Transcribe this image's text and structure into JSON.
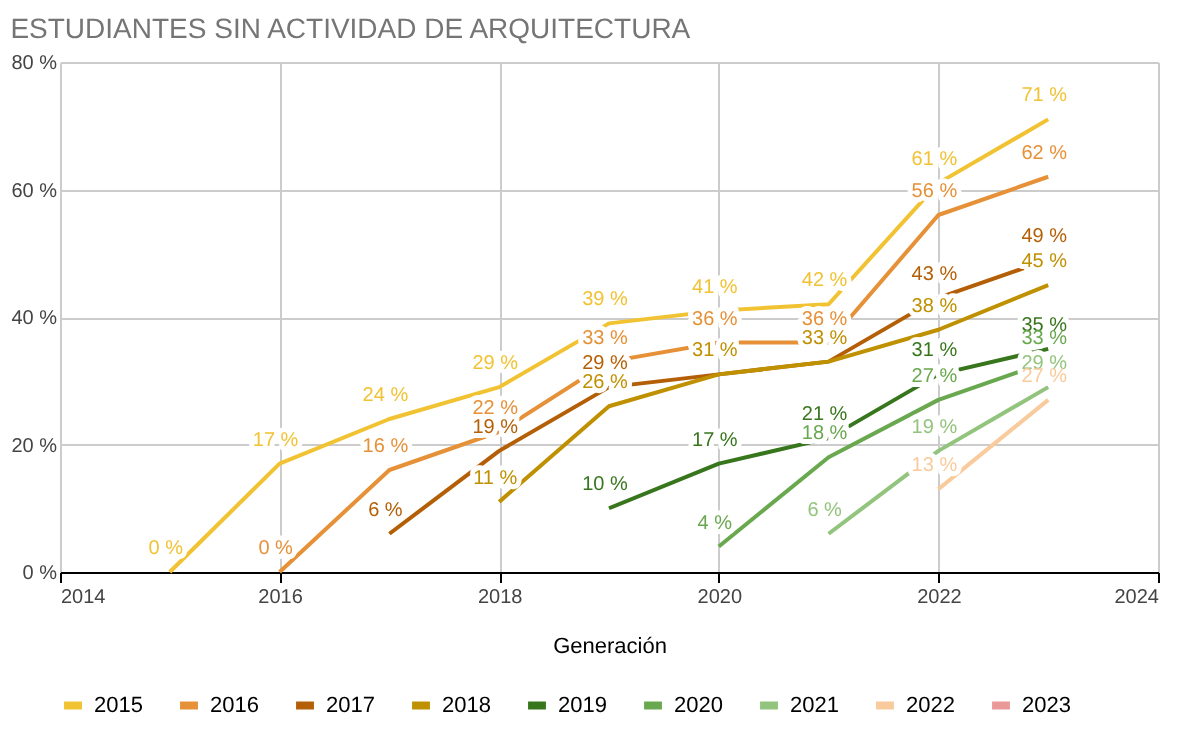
{
  "chart_data": {
    "type": "line",
    "title": "ESTUDIANTES SIN ACTIVIDAD DE ARQUITECTURA",
    "xlabel": "Generación",
    "x": [
      2015,
      2016,
      2017,
      2018,
      2019,
      2020,
      2021,
      2022,
      2023
    ],
    "series": [
      {
        "name": "2015",
        "color": "#f1c232",
        "values": [
          0,
          17,
          24,
          29,
          39,
          41,
          42,
          61,
          71
        ],
        "value_labels": [
          "0 %",
          "17 %",
          "24 %",
          "29 %",
          "39 %",
          "41 %",
          "42 %",
          "61 %",
          "71 %"
        ]
      },
      {
        "name": "2016",
        "color": "#e69138",
        "values": [
          null,
          0,
          16,
          22,
          33,
          36,
          36,
          56,
          62
        ],
        "value_labels": [
          null,
          "0 %",
          "16 %",
          "22 %",
          "33 %",
          "36 %",
          "36 %",
          "56 %",
          "62 %"
        ]
      },
      {
        "name": "2017",
        "color": "#b45f06",
        "values": [
          null,
          null,
          6,
          19,
          29,
          31,
          33,
          43,
          49
        ],
        "value_labels": [
          null,
          null,
          "6 %",
          "19 %",
          "29 %",
          null,
          null,
          "43 %",
          "49 %"
        ]
      },
      {
        "name": "2018",
        "color": "#bf9000",
        "values": [
          null,
          null,
          null,
          11,
          26,
          31,
          33,
          38,
          45
        ],
        "value_labels": [
          null,
          null,
          null,
          "11 %",
          "26 %",
          "31 %",
          "33 %",
          "38 %",
          "45 %"
        ]
      },
      {
        "name": "2019",
        "color": "#38761d",
        "values": [
          null,
          null,
          null,
          null,
          10,
          17,
          21,
          31,
          35
        ],
        "value_labels": [
          null,
          null,
          null,
          null,
          "10 %",
          "17 %",
          "21 %",
          "31 %",
          "35 %"
        ]
      },
      {
        "name": "2020",
        "color": "#6aa84f",
        "values": [
          null,
          null,
          null,
          null,
          null,
          4,
          18,
          27,
          33
        ],
        "value_labels": [
          null,
          null,
          null,
          null,
          null,
          "4 %",
          "18 %",
          "27 %",
          "33 %"
        ]
      },
      {
        "name": "2021",
        "color": "#93c47d",
        "values": [
          null,
          null,
          null,
          null,
          null,
          null,
          6,
          19,
          29
        ],
        "value_labels": [
          null,
          null,
          null,
          null,
          null,
          null,
          "6 %",
          "19 %",
          "29 %"
        ]
      },
      {
        "name": "2022",
        "color": "#f9cb9c",
        "values": [
          null,
          null,
          null,
          null,
          null,
          null,
          null,
          13,
          27
        ],
        "value_labels": [
          null,
          null,
          null,
          null,
          null,
          null,
          null,
          "13 %",
          "27 %"
        ]
      },
      {
        "name": "2023",
        "color": "#ea9999",
        "values": [
          null,
          null,
          null,
          null,
          null,
          null,
          null,
          null,
          null
        ]
      }
    ],
    "xlim": [
      2014,
      2024
    ],
    "xticks": [
      2014,
      2016,
      2018,
      2020,
      2022,
      2024
    ],
    "ylim": [
      0,
      80
    ],
    "yticks": [
      {
        "value": 0,
        "label": "0 %"
      },
      {
        "value": 20,
        "label": "20 %"
      },
      {
        "value": 40,
        "label": "40 %"
      },
      {
        "value": 60,
        "label": "60 %"
      },
      {
        "value": 80,
        "label": "80 %"
      }
    ],
    "grid": true,
    "legend": "bottom",
    "marker": "none",
    "line_style": "solid"
  }
}
